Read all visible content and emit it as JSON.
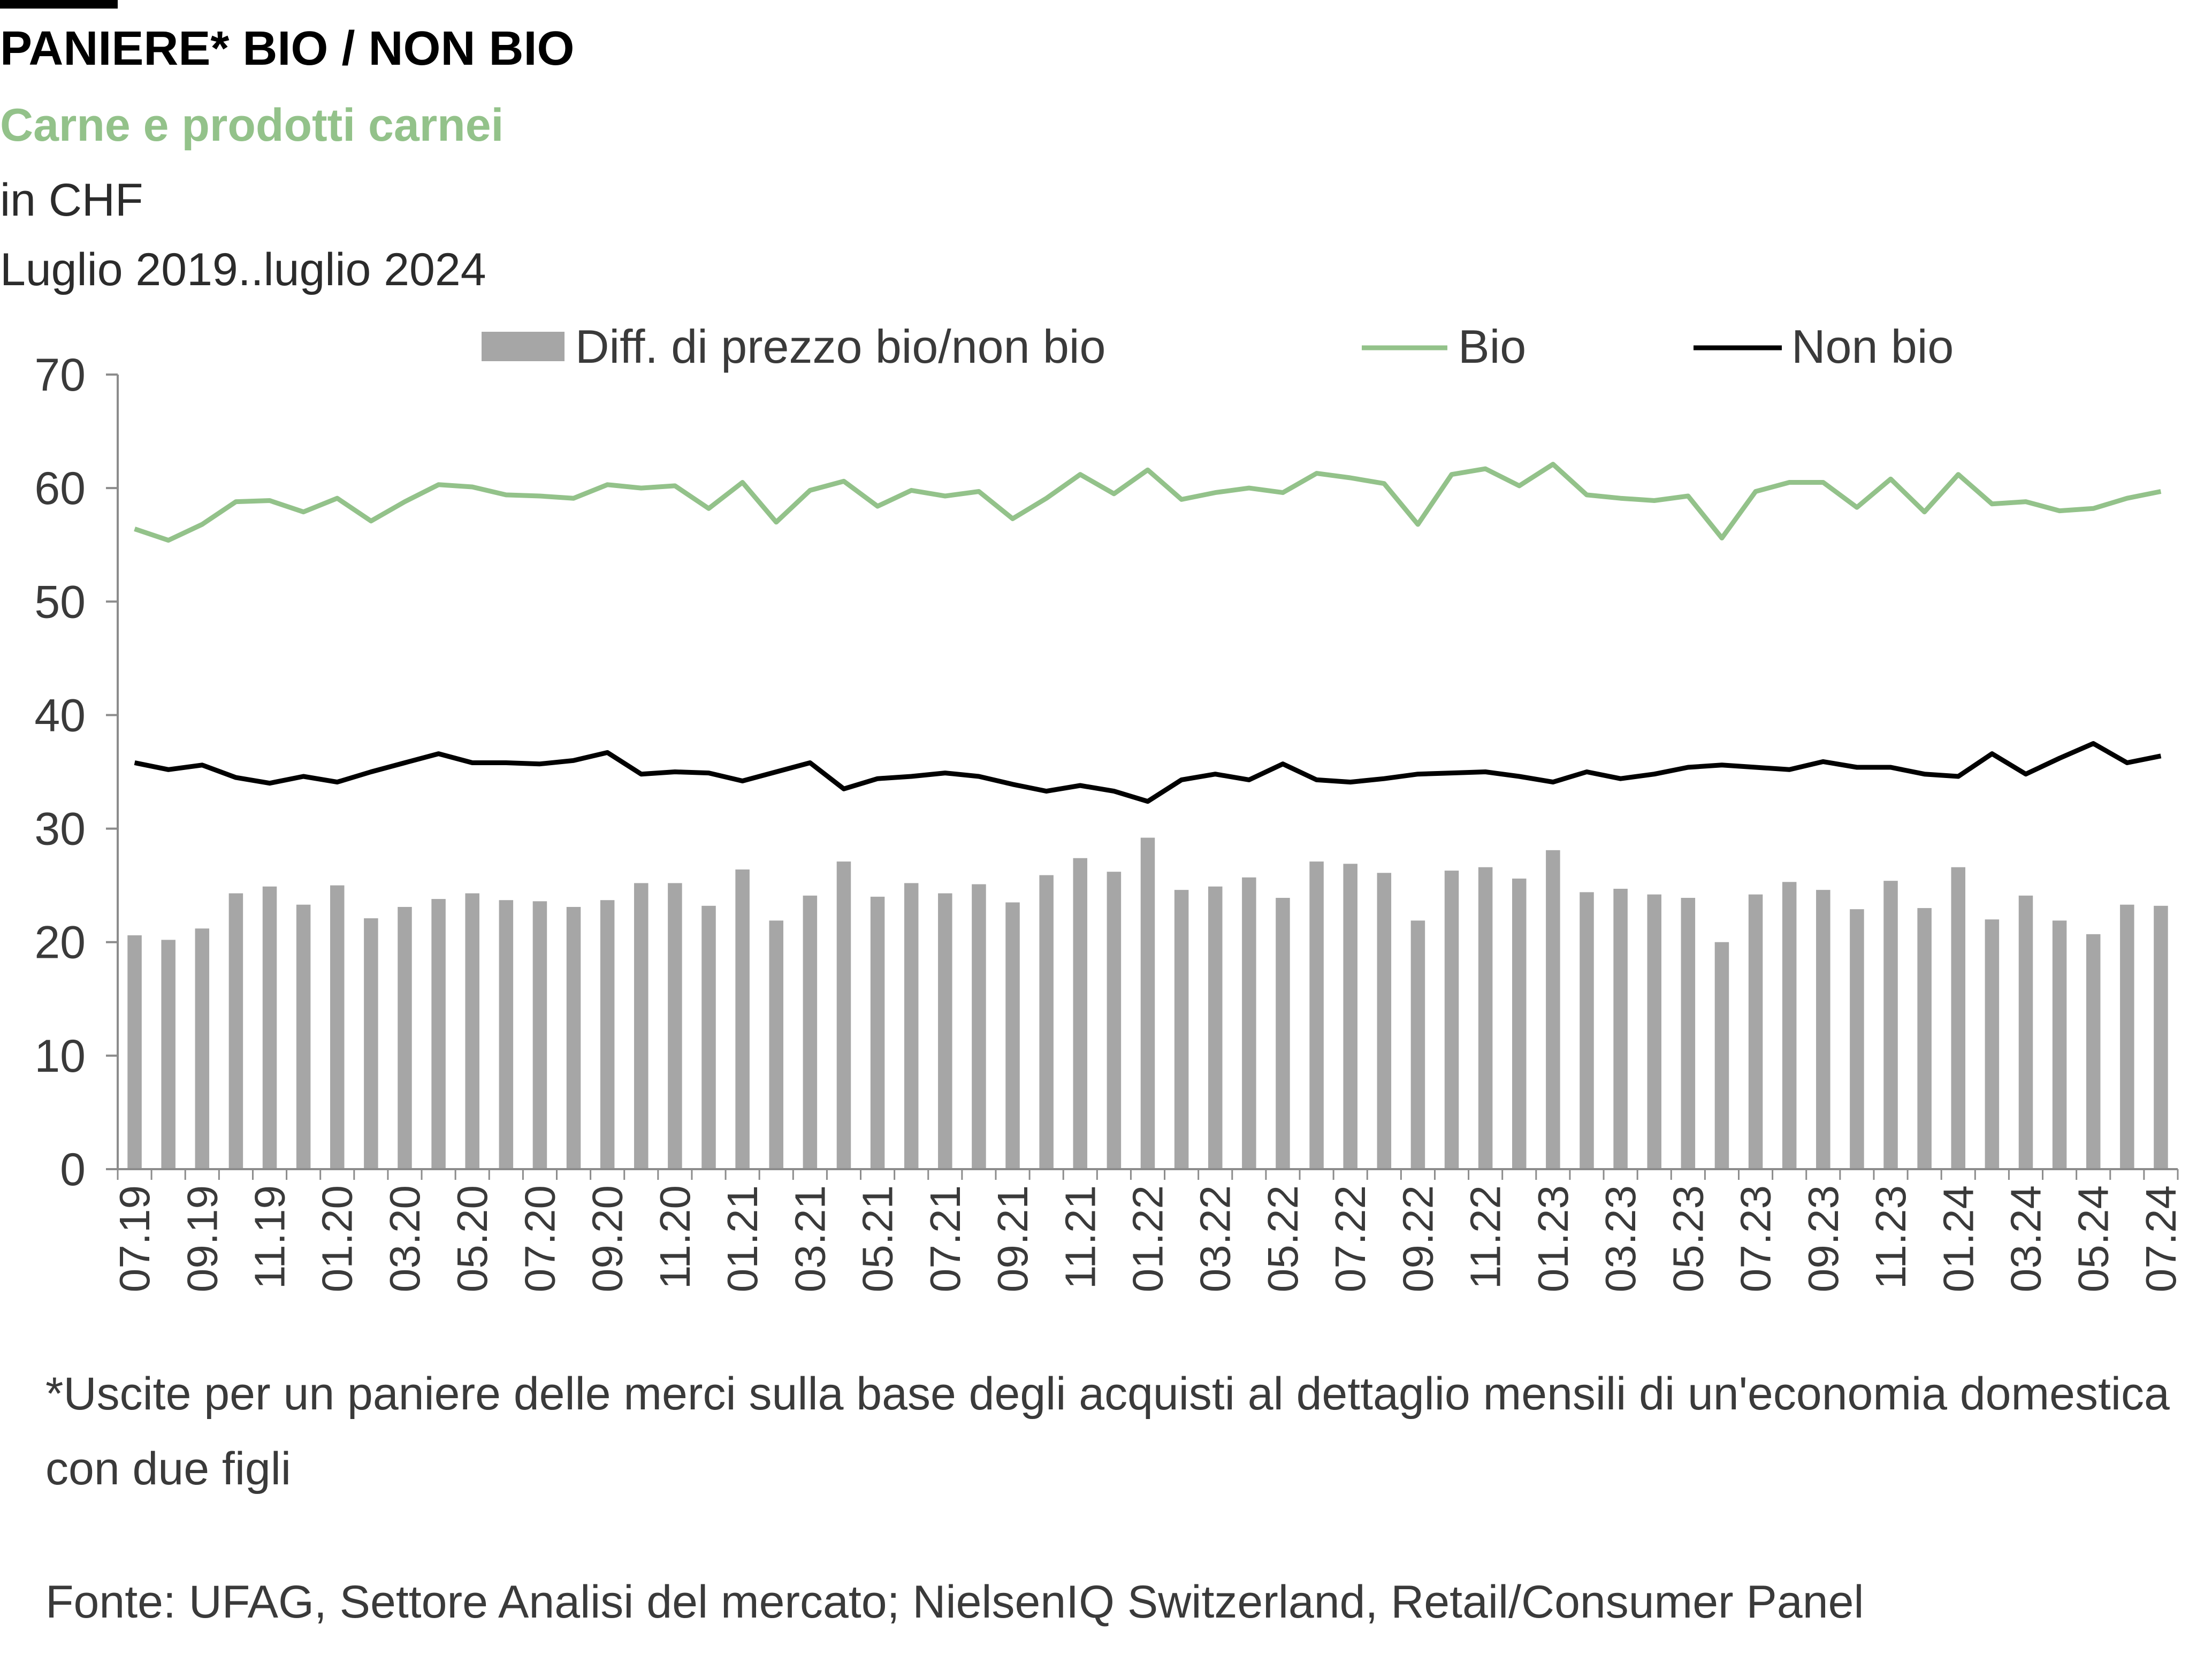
{
  "title": "PANIERE* BIO / NON BIO",
  "subtitle": "Carne e prodotti carnei",
  "unit": "in CHF",
  "period": "Luglio 2019..luglio 2024",
  "footnote": "*Uscite per un paniere delle merci sulla base degli acquisti al dettaglio mensili di un'economia domestica con due figli",
  "source": "Fonte: UFAG, Settore Analisi del mercato; NielsenIQ Switzerland, Retail/Consumer Panel",
  "colors": {
    "bars": "#a6a6a6",
    "bio": "#93c28a",
    "non_bio": "#000000"
  },
  "chart_data": {
    "type": "bar",
    "legend_position": "top",
    "grid": false,
    "ylim": [
      0,
      70
    ],
    "yticks": [
      "0",
      "10",
      "20",
      "30",
      "40",
      "50",
      "60",
      "70"
    ],
    "xtick_labels": [
      "07.19",
      "09.19",
      "11.19",
      "01.20",
      "03.20",
      "05.20",
      "07.20",
      "09.20",
      "11.20",
      "01.21",
      "03.21",
      "05.21",
      "07.21",
      "09.21",
      "11.21",
      "01.22",
      "03.22",
      "05.22",
      "07.22",
      "09.22",
      "11.22",
      "01.23",
      "03.23",
      "05.23",
      "07.23",
      "09.23",
      "11.23",
      "01.24",
      "03.24",
      "05.24",
      "07.24"
    ],
    "categories": [
      "07.19",
      "08.19",
      "09.19",
      "10.19",
      "11.19",
      "12.19",
      "01.20",
      "02.20",
      "03.20",
      "04.20",
      "05.20",
      "06.20",
      "07.20",
      "08.20",
      "09.20",
      "10.20",
      "11.20",
      "12.20",
      "01.21",
      "02.21",
      "03.21",
      "04.21",
      "05.21",
      "06.21",
      "07.21",
      "08.21",
      "09.21",
      "10.21",
      "11.21",
      "12.21",
      "01.22",
      "02.22",
      "03.22",
      "04.22",
      "05.22",
      "06.22",
      "07.22",
      "08.22",
      "09.22",
      "10.22",
      "11.22",
      "12.22",
      "01.23",
      "02.23",
      "03.23",
      "04.23",
      "05.23",
      "06.23",
      "07.23",
      "08.23",
      "09.23",
      "10.23",
      "11.23",
      "12.23",
      "01.24",
      "02.24",
      "03.24",
      "04.24",
      "05.24",
      "06.24",
      "07.24"
    ],
    "series": [
      {
        "name": "Diff. di prezzo bio/non bio",
        "type": "bar",
        "values": [
          20.6,
          20.2,
          21.2,
          24.3,
          24.9,
          23.3,
          25.0,
          22.1,
          23.1,
          23.8,
          24.3,
          23.7,
          23.6,
          23.1,
          23.7,
          25.2,
          25.2,
          23.2,
          26.4,
          21.9,
          24.1,
          27.1,
          24.0,
          25.2,
          24.3,
          25.1,
          23.5,
          25.9,
          27.4,
          26.2,
          29.2,
          24.6,
          24.9,
          25.7,
          23.9,
          27.1,
          26.9,
          26.1,
          21.9,
          26.3,
          26.6,
          25.6,
          28.1,
          24.4,
          24.7,
          24.2,
          23.9,
          20.0,
          24.2,
          25.3,
          24.6,
          22.9,
          25.4,
          23.0,
          26.6,
          22.0,
          24.1,
          21.9,
          20.7,
          23.3,
          23.2
        ]
      },
      {
        "name": "Bio",
        "type": "line",
        "values": [
          56.4,
          55.4,
          56.8,
          58.8,
          58.9,
          57.9,
          59.1,
          57.1,
          58.8,
          60.3,
          60.1,
          59.4,
          59.3,
          59.1,
          60.3,
          60.0,
          60.2,
          58.2,
          60.5,
          57.0,
          59.8,
          60.6,
          58.4,
          59.8,
          59.3,
          59.7,
          57.3,
          59.1,
          61.2,
          59.5,
          61.6,
          59.0,
          59.6,
          60.0,
          59.6,
          61.3,
          60.9,
          60.4,
          56.8,
          61.2,
          61.7,
          60.2,
          62.1,
          59.4,
          59.1,
          58.9,
          59.3,
          55.6,
          59.7,
          60.5,
          60.5,
          58.3,
          60.8,
          57.9,
          61.2,
          58.6,
          58.8,
          58.0,
          58.2,
          59.1,
          59.7
        ]
      },
      {
        "name": "Non bio",
        "type": "line",
        "values": [
          35.8,
          35.2,
          35.6,
          34.5,
          34.0,
          34.6,
          34.1,
          35.0,
          35.8,
          36.6,
          35.8,
          35.8,
          35.7,
          36.0,
          36.7,
          34.8,
          35.0,
          34.9,
          34.2,
          35.0,
          35.8,
          33.5,
          34.4,
          34.6,
          34.9,
          34.6,
          33.9,
          33.3,
          33.8,
          33.3,
          32.4,
          34.3,
          34.8,
          34.3,
          35.7,
          34.3,
          34.1,
          34.4,
          34.8,
          34.9,
          35.0,
          34.6,
          34.1,
          35.0,
          34.4,
          34.8,
          35.4,
          35.6,
          35.4,
          35.2,
          35.9,
          35.4,
          35.4,
          34.8,
          34.6,
          36.6,
          34.8,
          36.2,
          37.5,
          35.8,
          36.4
        ]
      }
    ]
  }
}
